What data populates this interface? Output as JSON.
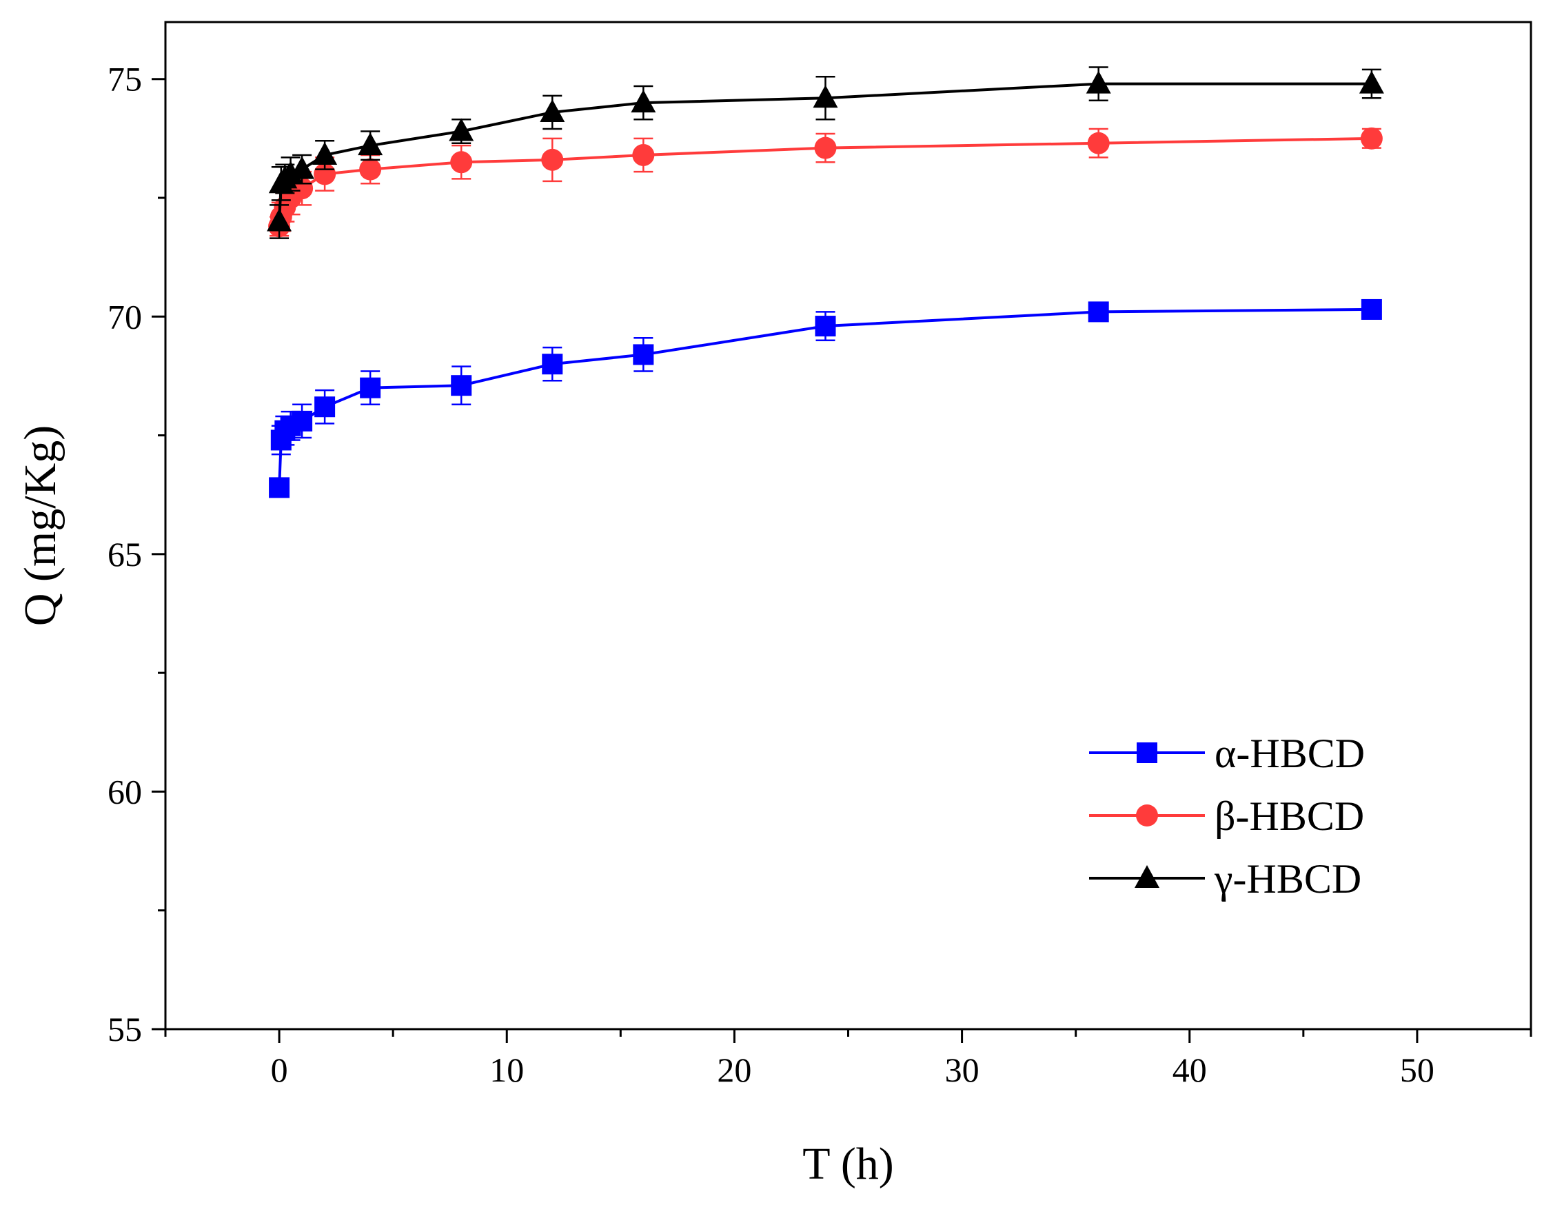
{
  "chart_data": {
    "type": "line",
    "title": "",
    "xlabel": "T (h)",
    "ylabel": "Q (mg/Kg)",
    "xlim": [
      -5,
      55
    ],
    "ylim": [
      55,
      76.2
    ],
    "x_ticks": [
      0,
      10,
      20,
      30,
      40,
      50
    ],
    "x_minor_ticks": [
      -5,
      5,
      15,
      25,
      35,
      45,
      55
    ],
    "y_ticks": [
      55,
      60,
      65,
      70,
      75
    ],
    "y_minor_ticks": [
      57.5,
      62.5,
      67.5,
      72.5
    ],
    "x_tick_labels": [
      "0",
      "10",
      "20",
      "30",
      "40",
      "50"
    ],
    "y_tick_labels": [
      "55",
      "60",
      "65",
      "70",
      "75"
    ],
    "grid": false,
    "legend_position": "bottom-right",
    "x": [
      0,
      0.083,
      0.25,
      0.5,
      1,
      2,
      4,
      8,
      12,
      16,
      24,
      36,
      48
    ],
    "series": [
      {
        "name": "α-HBCD",
        "color": "#0000ff",
        "marker": "square",
        "values": [
          66.4,
          67.4,
          67.6,
          67.7,
          67.8,
          68.1,
          68.5,
          68.55,
          69.0,
          69.2,
          69.8,
          70.1,
          70.15
        ],
        "errors": [
          0.05,
          0.3,
          0.3,
          0.3,
          0.35,
          0.35,
          0.35,
          0.4,
          0.35,
          0.35,
          0.3,
          0.1,
          0.1
        ]
      },
      {
        "name": "β-HBCD",
        "color": "#ff3b3b",
        "marker": "circle",
        "values": [
          71.9,
          72.1,
          72.3,
          72.5,
          72.7,
          73.0,
          73.1,
          73.25,
          73.3,
          73.4,
          73.55,
          73.65,
          73.75
        ],
        "errors": [
          0.2,
          0.3,
          0.3,
          0.35,
          0.35,
          0.35,
          0.3,
          0.35,
          0.45,
          0.35,
          0.3,
          0.3,
          0.2
        ]
      },
      {
        "name": "γ-HBCD",
        "color": "#000000",
        "marker": "triangle",
        "values": [
          72.0,
          72.8,
          72.9,
          73.0,
          73.1,
          73.4,
          73.6,
          73.9,
          74.3,
          74.5,
          74.6,
          74.9,
          74.9
        ],
        "errors": [
          0.35,
          0.35,
          0.3,
          0.35,
          0.3,
          0.3,
          0.3,
          0.25,
          0.35,
          0.35,
          0.45,
          0.35,
          0.3
        ]
      }
    ]
  }
}
